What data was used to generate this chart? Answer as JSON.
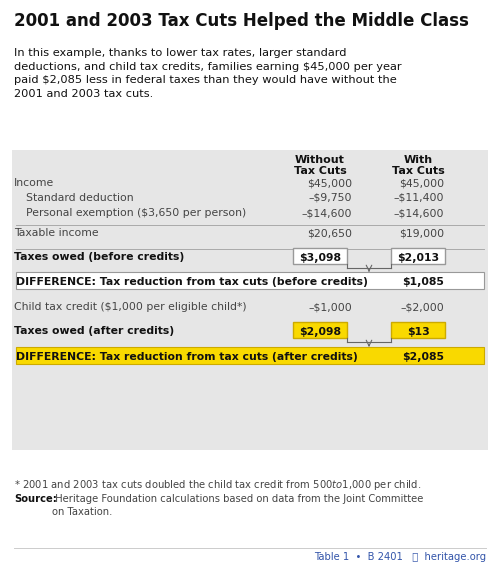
{
  "title": "2001 and 2003 Tax Cuts Helped the Middle Class",
  "subtitle": "In this example, thanks to lower tax rates, larger standard\ndeductions, and child tax credits, families earning $45,000 per year\npaid $2,085 less in federal taxes than they would have without the\n2001 and 2003 tax cuts.",
  "col1_header_line1": "Without",
  "col1_header_line2": "Tax Cuts",
  "col2_header_line1": "With",
  "col2_header_line2": "Tax Cuts",
  "rows": [
    {
      "label": "Income",
      "col1": "$45,000",
      "col2": "$45,000",
      "indent": false,
      "bold": false,
      "sep_before": false,
      "type": "normal"
    },
    {
      "label": "Standard deduction",
      "col1": "–$9,750",
      "col2": "–$11,400",
      "indent": true,
      "bold": false,
      "sep_before": false,
      "type": "normal"
    },
    {
      "label": "Personal exemption ($3,650 per person)",
      "col1": "–$14,600",
      "col2": "–$14,600",
      "indent": true,
      "bold": false,
      "sep_before": false,
      "type": "normal"
    },
    {
      "label": "Taxable income",
      "col1": "$20,650",
      "col2": "$19,000",
      "indent": false,
      "bold": false,
      "sep_before": true,
      "type": "normal"
    },
    {
      "label": "Taxes owed (before credits)",
      "col1": "$3,098",
      "col2": "$2,013",
      "indent": false,
      "bold": true,
      "sep_before": true,
      "type": "box_white"
    },
    {
      "label": "DIFFERENCE: Tax reduction from tax cuts (before credits)",
      "col1": "",
      "col2": "$1,085",
      "indent": false,
      "bold": true,
      "sep_before": false,
      "type": "diff_white"
    },
    {
      "label": "Child tax credit ($1,000 per eligible child*)",
      "col1": "–$1,000",
      "col2": "–$2,000",
      "indent": false,
      "bold": false,
      "sep_before": false,
      "type": "normal"
    },
    {
      "label": "Taxes owed (after credits)",
      "col1": "$2,098",
      "col2": "$13",
      "indent": false,
      "bold": true,
      "sep_before": false,
      "type": "box_yellow"
    },
    {
      "label": "DIFFERENCE: Tax reduction from tax cuts (after credits)",
      "col1": "",
      "col2": "$2,085",
      "indent": false,
      "bold": true,
      "sep_before": false,
      "type": "diff_yellow"
    }
  ],
  "footnote": "* 2001 and 2003 tax cuts doubled the child tax credit from $500 to $1,000 per child.",
  "source_bold": "Source:",
  "source_rest": " Heritage Foundation calculations based on data from the Joint Committee\non Taxation.",
  "footer_text": "Table 1  •  B 2401    heritage.org",
  "bg_white": "#ffffff",
  "bg_table": "#e6e6e6",
  "bg_yellow": "#f9d900",
  "color_black": "#111111",
  "color_gray": "#444444",
  "color_blue": "#3355aa",
  "color_sep": "#aaaaaa",
  "color_box_border": "#999999"
}
